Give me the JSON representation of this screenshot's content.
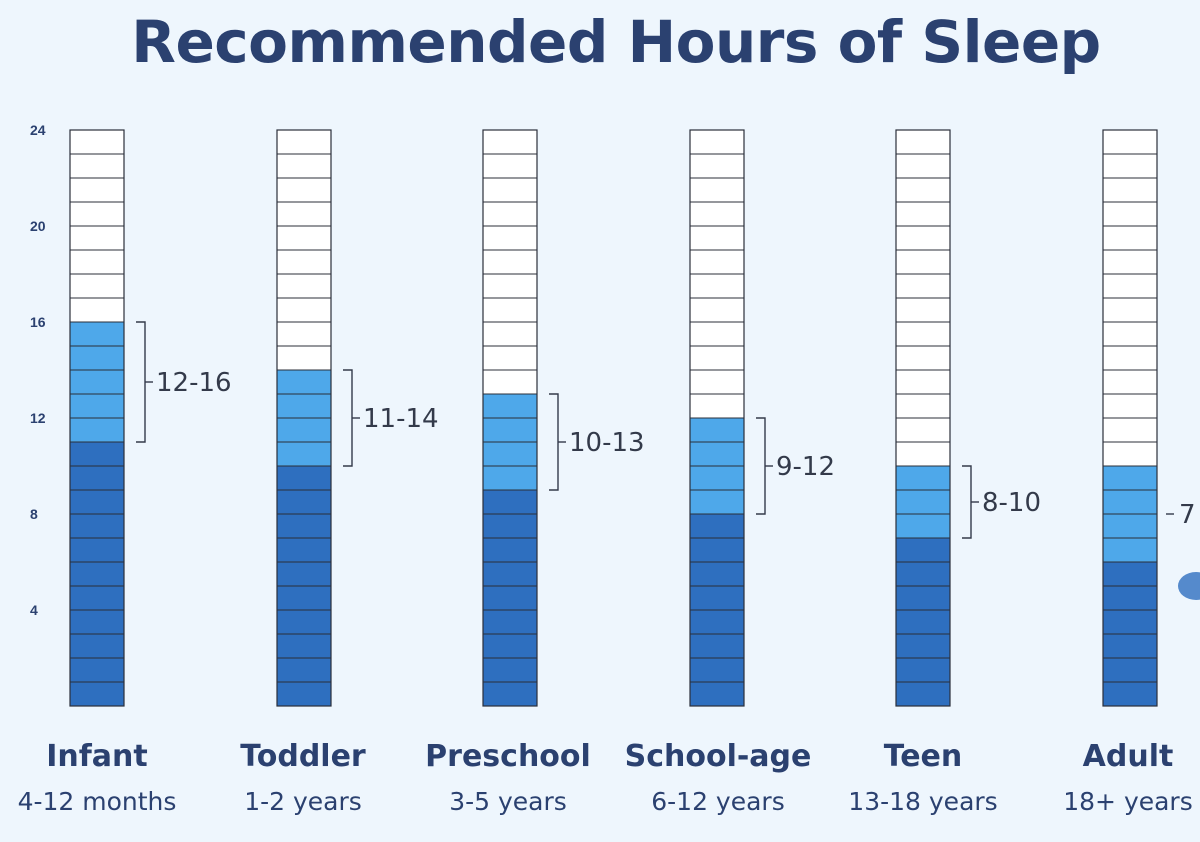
{
  "chart_data": {
    "type": "bar",
    "title": "Recommended Hours of Sleep",
    "categories": [
      "Infant",
      "Toddler",
      "Preschool",
      "School-age",
      "Teen",
      "Adult"
    ],
    "subcategories": [
      "4-12 months",
      "1-2 years",
      "3-5 years",
      "6-12 years",
      "13-18 years",
      "18+ years"
    ],
    "series": [
      {
        "values": [
          11,
          10,
          9,
          8,
          7,
          6
        ]
      },
      {
        "values": [
          5,
          4,
          4,
          4,
          3,
          4
        ]
      }
    ],
    "range_labels": [
      "12-16",
      "11-14",
      "10-13",
      "9-12",
      "8-10",
      "7"
    ],
    "yticks": [
      4,
      8,
      12,
      16,
      20,
      24
    ],
    "ylim": [
      0,
      24
    ],
    "colors": {
      "base": "#2e6fbf",
      "range": "#4ea8ea",
      "empty": "#ffffff",
      "grid": "#2b2f3a",
      "text": "#2b4170"
    }
  }
}
